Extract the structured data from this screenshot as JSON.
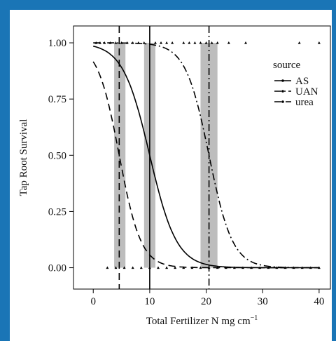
{
  "chart_data": {
    "type": "line",
    "xlabel": "Total Fertilizer N mg cm",
    "xlabel_sup": "−1",
    "ylabel": "Tap Root Survival",
    "xlim": [
      -3.5,
      42
    ],
    "ylim": [
      -0.095,
      1.075
    ],
    "xticks": [
      0,
      10,
      20,
      30,
      40
    ],
    "yticks": [
      0.0,
      0.25,
      0.5,
      0.75,
      1.0
    ],
    "ytick_labels": [
      "0.00",
      "0.25",
      "0.50",
      "0.75",
      "1.00"
    ],
    "grid": false,
    "legend_position": "top-right",
    "legend_title": "source",
    "series": [
      {
        "name": "AS",
        "dash": "solid",
        "lc50": 10.0,
        "slope": 0.42,
        "ci": [
          9.0,
          11.0
        ],
        "color": "#000000"
      },
      {
        "name": "UAN",
        "dash": "dashdot",
        "lc50": 20.5,
        "slope": 0.48,
        "ci": [
          19.0,
          22.0
        ],
        "color": "#000000"
      },
      {
        "name": "urea",
        "dash": "dashed",
        "lc50": 4.6,
        "slope": 0.52,
        "ci": [
          3.7,
          5.7
        ],
        "color": "#000000"
      }
    ],
    "ci_color": "#bdbdbd",
    "observations_survived": [
      0.5,
      1.2,
      2.0,
      3.0,
      4.0,
      5.0,
      6.0,
      7.0,
      8.0,
      9.0,
      11.0,
      12.0,
      13.0,
      14.0,
      16.0,
      17.0,
      18.0,
      19.0,
      20.0,
      21.0,
      22.0,
      24.0,
      27.0,
      36.5,
      40.0
    ],
    "observations_died": [
      2.5,
      4.0,
      5.5,
      7.0,
      8.5,
      10.0,
      11.5,
      13.0,
      14.5,
      16.0,
      17.5,
      19.0,
      20.5,
      22.0,
      23.5,
      25.0,
      26.5,
      28.0,
      29.5,
      31.0,
      32.5,
      34.0,
      35.5,
      37.0,
      38.5,
      40.0
    ]
  }
}
